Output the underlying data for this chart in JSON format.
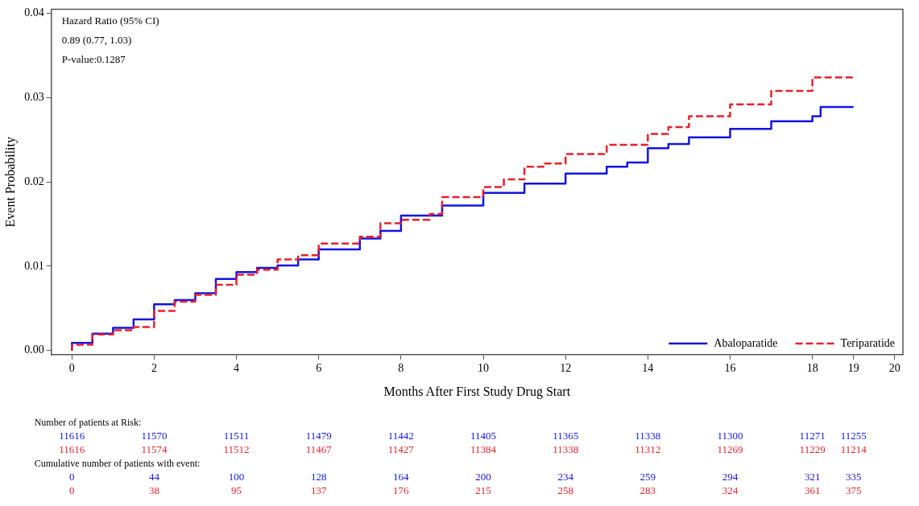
{
  "chart_data": {
    "type": "step",
    "xlabel": "Months After First Study Drug Start",
    "ylabel": "Event Probability",
    "xlim": [
      -0.5,
      20.2
    ],
    "xticks": [
      0,
      2,
      4,
      6,
      8,
      10,
      12,
      14,
      16,
      18,
      19,
      20
    ],
    "ylim": [
      -0.0005,
      0.0405
    ],
    "yticks": [
      {
        "value": 0,
        "label": "0.00"
      },
      0.01,
      0.02,
      0.03,
      0.04
    ],
    "legend": "bottom right",
    "grid": false,
    "marker": "none",
    "series": [
      {
        "name": "Abaloparatide",
        "color": "#1414e0",
        "line_style": "solid",
        "x": [
          0,
          0.5,
          1,
          1.5,
          2,
          2.5,
          3,
          3.5,
          4,
          4.5,
          5,
          5.5,
          6,
          7,
          7.5,
          8,
          9,
          10,
          11,
          12,
          13,
          13.5,
          14,
          14.5,
          15,
          16,
          17,
          18,
          18.2,
          19
        ],
        "values": [
          0,
          0.0009,
          0.002,
          0.0027,
          0.0037,
          0.0055,
          0.006,
          0.0068,
          0.0085,
          0.0093,
          0.0098,
          0.0101,
          0.0108,
          0.012,
          0.0133,
          0.0142,
          0.016,
          0.0172,
          0.0187,
          0.0198,
          0.021,
          0.0218,
          0.0223,
          0.024,
          0.0245,
          0.0253,
          0.0263,
          0.0272,
          0.0278,
          0.0289
        ]
      },
      {
        "name": "Teriparatide",
        "color": "#e8202a",
        "line_style": "dashed",
        "x": [
          0,
          0.5,
          1,
          1.5,
          2,
          2.5,
          3,
          3.5,
          4,
          4.5,
          5,
          5.5,
          6,
          7,
          7.5,
          8,
          8.7,
          9,
          10,
          10.5,
          11,
          11.5,
          12,
          13,
          14,
          14.5,
          15,
          16,
          17,
          18,
          19
        ],
        "values": [
          0,
          0.0007,
          0.0019,
          0.0024,
          0.0028,
          0.0047,
          0.0058,
          0.0066,
          0.0078,
          0.009,
          0.0096,
          0.0108,
          0.0113,
          0.0127,
          0.0135,
          0.0151,
          0.0155,
          0.0162,
          0.0182,
          0.0194,
          0.0203,
          0.0218,
          0.0222,
          0.0233,
          0.0244,
          0.0257,
          0.0265,
          0.0278,
          0.0292,
          0.0308,
          0.0324
        ]
      }
    ],
    "annotations": [
      "Hazard Ratio (95% CI)",
      "0.89 (0.77, 1.03)",
      "P-value:0.1287",
      "Number of patients at Risk:",
      "11616",
      "11570",
      "11511",
      "11479",
      "11442",
      "11405",
      "11365",
      "11338",
      "11300",
      "11271",
      "11255",
      "11616",
      "11574",
      "11512",
      "11467",
      "11427",
      "11384",
      "11338",
      "11312",
      "11269",
      "11229",
      "11214",
      "Cumulative number of patients with event:",
      "0",
      "44",
      "100",
      "128",
      "164",
      "200",
      "234",
      "259",
      "294",
      "321",
      "335",
      "0",
      "38",
      "95",
      "137",
      "176",
      "215",
      "258",
      "283",
      "324",
      "361",
      "375"
    ]
  }
}
